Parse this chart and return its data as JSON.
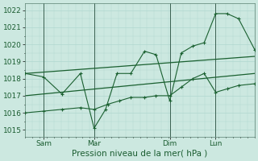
{
  "xlabel": "Pression niveau de la mer( hPa )",
  "bg_color": "#cce8e0",
  "grid_color": "#b0d8d0",
  "line_color": "#1a6030",
  "tick_label_color": "#1a5c30",
  "xlabel_color": "#1a5c30",
  "tick_label_size": 6.5,
  "xlabel_size": 7.5,
  "day_labels": [
    "Sam",
    "Mar",
    "Dim",
    "Lun"
  ],
  "day_positions": [
    0.08,
    0.3,
    0.63,
    0.83
  ],
  "vline_x": [
    0.08,
    0.3,
    0.63,
    0.83
  ],
  "yticks": [
    1015,
    1016,
    1017,
    1018,
    1019,
    1020,
    1021,
    1022
  ],
  "ylim": [
    1014.6,
    1022.4
  ],
  "xlim": [
    0.0,
    1.0
  ],
  "series_jagged1_x": [
    0.0,
    0.08,
    0.16,
    0.24,
    0.3,
    0.35,
    0.4,
    0.46,
    0.52,
    0.57,
    0.63,
    0.68,
    0.73,
    0.78,
    0.83,
    0.88,
    0.93,
    1.0
  ],
  "series_jagged1_y": [
    1018.3,
    1018.1,
    1017.1,
    1018.3,
    1015.1,
    1016.2,
    1018.3,
    1018.3,
    1019.6,
    1019.4,
    1016.7,
    1019.5,
    1019.9,
    1020.1,
    1021.8,
    1021.8,
    1021.5,
    1019.7
  ],
  "series_jagged2_x": [
    0.0,
    0.08,
    0.16,
    0.24,
    0.3,
    0.36,
    0.41,
    0.46,
    0.52,
    0.57,
    0.63,
    0.68,
    0.73,
    0.78,
    0.83,
    0.88,
    0.93,
    1.0
  ],
  "series_jagged2_y": [
    1016.0,
    1016.1,
    1016.2,
    1016.3,
    1016.2,
    1016.5,
    1016.7,
    1016.9,
    1016.9,
    1017.0,
    1017.0,
    1017.5,
    1018.0,
    1018.3,
    1017.2,
    1017.4,
    1017.6,
    1017.7
  ],
  "series_trend1_x": [
    0.0,
    1.0
  ],
  "series_trend1_y": [
    1018.3,
    1019.3
  ],
  "series_trend2_x": [
    0.0,
    1.0
  ],
  "series_trend2_y": [
    1017.0,
    1018.3
  ]
}
